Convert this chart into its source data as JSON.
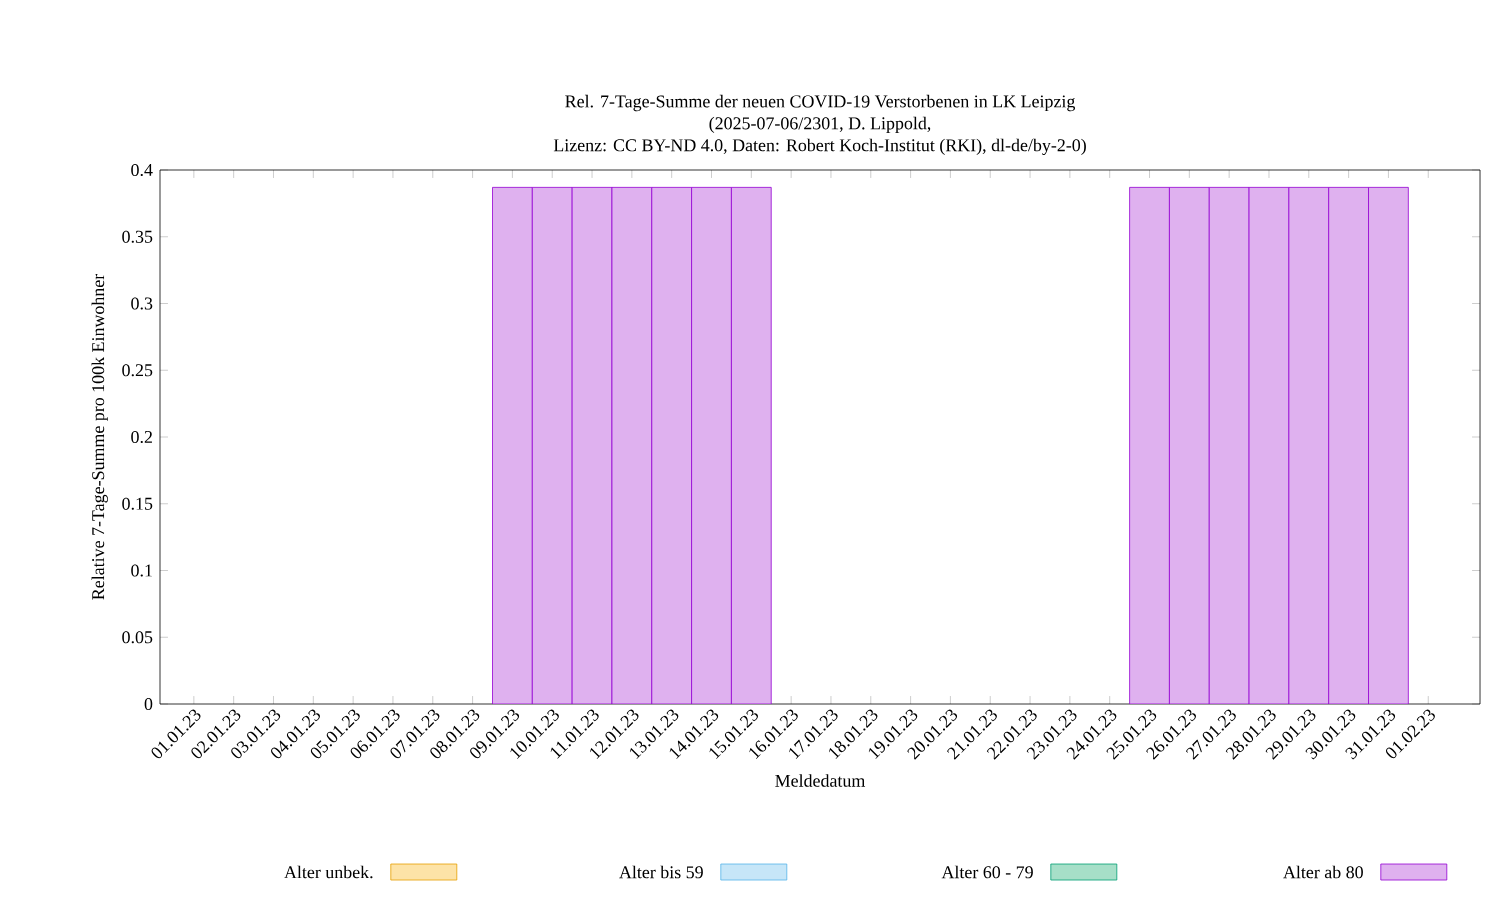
{
  "chart_data": {
    "type": "bar",
    "stacked": true,
    "title": "Rel. 7-Tage-Summe der neuen COVID-19 Verstorbenen in LK Leipzig\n(2025-07-06/2301, D. Lippold,\nLizenz: CC BY-ND 4.0, Daten: Robert Koch-Institut (RKI), dl-de/by-2-0)",
    "xlabel": "Meldedatum",
    "ylabel": "Relative 7-Tage-Summe pro 100k Einwohner",
    "categories": [
      "01.01.23",
      "02.01.23",
      "03.01.23",
      "04.01.23",
      "05.01.23",
      "06.01.23",
      "07.01.23",
      "08.01.23",
      "09.01.23",
      "10.01.23",
      "11.01.23",
      "12.01.23",
      "13.01.23",
      "14.01.23",
      "15.01.23",
      "16.01.23",
      "17.01.23",
      "18.01.23",
      "19.01.23",
      "20.01.23",
      "21.01.23",
      "22.01.23",
      "23.01.23",
      "24.01.23",
      "25.01.23",
      "26.01.23",
      "27.01.23",
      "28.01.23",
      "29.01.23",
      "30.01.23",
      "31.01.23",
      "01.02.23"
    ],
    "series": [
      {
        "name": "Alter unbek.",
        "color": "#fde3a7",
        "values": [
          0,
          0,
          0,
          0,
          0,
          0,
          0,
          0,
          0,
          0,
          0,
          0,
          0,
          0,
          0,
          0,
          0,
          0,
          0,
          0,
          0,
          0,
          0,
          0,
          0,
          0,
          0,
          0,
          0,
          0,
          0,
          0
        ]
      },
      {
        "name": "Alter bis 59",
        "color": "#c6e6f8",
        "values": [
          0,
          0,
          0,
          0,
          0,
          0,
          0,
          0,
          0,
          0,
          0,
          0,
          0,
          0,
          0,
          0,
          0,
          0,
          0,
          0,
          0,
          0,
          0,
          0,
          0,
          0,
          0,
          0,
          0,
          0,
          0,
          0
        ]
      },
      {
        "name": "Alter 60 - 79",
        "color": "#a6dfc8",
        "values": [
          0,
          0,
          0,
          0,
          0,
          0,
          0,
          0,
          0,
          0,
          0,
          0,
          0,
          0,
          0,
          0,
          0,
          0,
          0,
          0,
          0,
          0,
          0,
          0,
          0,
          0,
          0,
          0,
          0,
          0,
          0,
          0
        ]
      },
      {
        "name": "Alter ab 80",
        "color": "#dfb1ef",
        "values": [
          0,
          0,
          0,
          0,
          0,
          0,
          0,
          0,
          0.387,
          0.387,
          0.387,
          0.387,
          0.387,
          0.387,
          0.387,
          0,
          0,
          0,
          0,
          0,
          0,
          0,
          0,
          0,
          0.387,
          0.387,
          0.387,
          0.387,
          0.387,
          0.387,
          0.387,
          0
        ]
      }
    ],
    "ylim": [
      0,
      0.4
    ],
    "yticks": [
      0,
      0.05,
      0.1,
      0.15,
      0.2,
      0.25,
      0.3,
      0.35,
      0.4
    ],
    "grid": false,
    "legend": "bottom"
  }
}
